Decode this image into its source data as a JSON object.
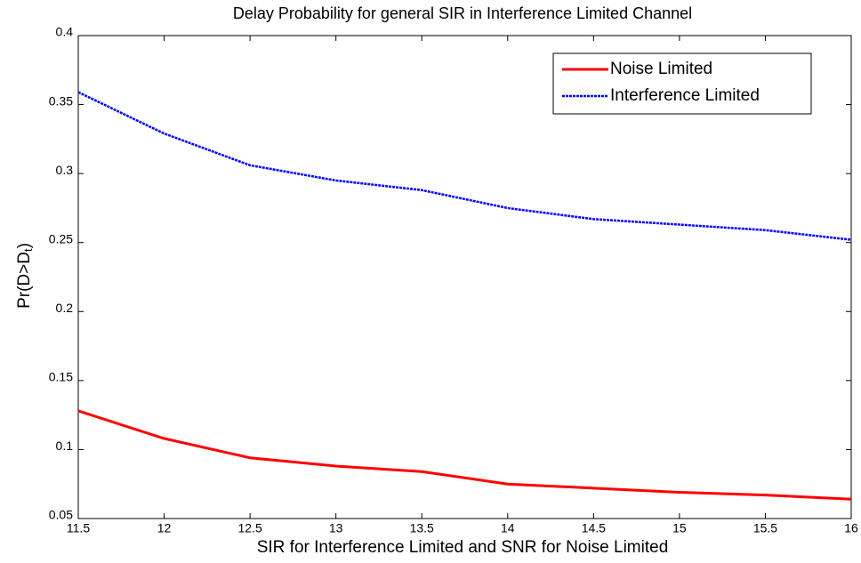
{
  "chart_data": {
    "type": "line",
    "title": "Delay Probability for general SIR in Interference Limited Channel",
    "xlabel": "SIR for Interference Limited and SNR for Noise Limited",
    "ylabel": {
      "main": "Pr(D>D",
      "sub": "t",
      "end": ")"
    },
    "x": [
      11.5,
      12,
      12.5,
      13,
      13.5,
      14,
      14.5,
      15,
      15.5,
      16
    ],
    "series": [
      {
        "name": "Noise Limited",
        "color": "#ff0000",
        "style": "solid",
        "values": [
          0.128,
          0.108,
          0.094,
          0.088,
          0.084,
          0.075,
          0.072,
          0.069,
          0.067,
          0.064
        ]
      },
      {
        "name": "Interference Limited",
        "color": "#0000ff",
        "style": "dotted",
        "values": [
          0.359,
          0.329,
          0.306,
          0.295,
          0.288,
          0.275,
          0.267,
          0.263,
          0.259,
          0.252
        ]
      }
    ],
    "xlim": [
      11.5,
      16
    ],
    "xticks": [
      11.5,
      12,
      12.5,
      13,
      13.5,
      14,
      14.5,
      15,
      15.5,
      16
    ],
    "ylim": [
      0.05,
      0.4
    ],
    "yticks": [
      0.05,
      0.1,
      0.15,
      0.2,
      0.25,
      0.3,
      0.35,
      0.4
    ],
    "grid": false,
    "legend": "upper right"
  }
}
